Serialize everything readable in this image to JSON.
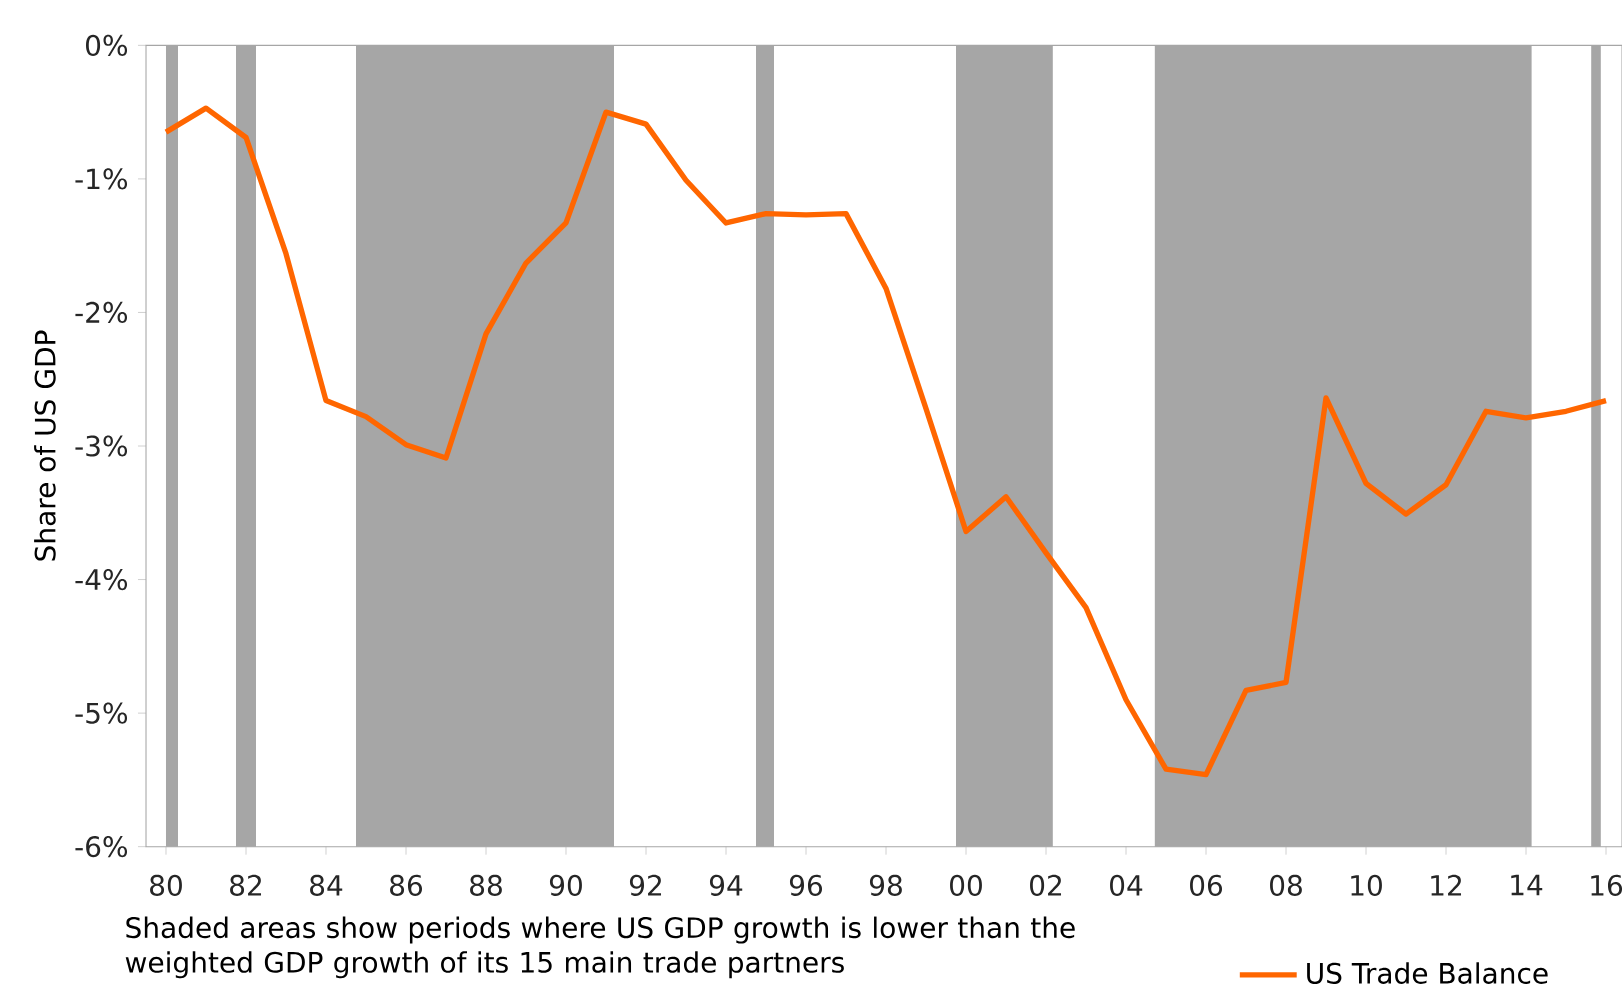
{
  "chart_data": {
    "type": "line",
    "ylabel": "Share of US GDP",
    "x": [
      1980,
      1981,
      1982,
      1983,
      1984,
      1985,
      1986,
      1987,
      1988,
      1989,
      1990,
      1991,
      1992,
      1993,
      1994,
      1995,
      1996,
      1997,
      1998,
      1999,
      2000,
      2001,
      2002,
      2003,
      2004,
      2005,
      2006,
      2007,
      2008,
      2009,
      2010,
      2011,
      2012,
      2013,
      2014,
      2015,
      2016
    ],
    "series": [
      {
        "name": "US Trade Balance",
        "color": "#ff6600",
        "values": [
          -0.65,
          -0.47,
          -0.69,
          -1.56,
          -2.66,
          -2.78,
          -2.99,
          -3.09,
          -2.16,
          -1.63,
          -1.33,
          -0.5,
          -0.59,
          -1.01,
          -1.33,
          -1.26,
          -1.27,
          -1.26,
          -1.82,
          -2.72,
          -3.64,
          -3.38,
          -3.8,
          -4.21,
          -4.9,
          -5.42,
          -5.46,
          -4.83,
          -4.77,
          -2.64,
          -3.28,
          -3.51,
          -3.29,
          -2.74,
          -2.79,
          -2.74,
          -2.66
        ]
      }
    ],
    "bands": [
      {
        "axis": "x",
        "from": 1980.0,
        "to": 1980.3,
        "color": "#a6a6a6"
      },
      {
        "axis": "x",
        "from": 1981.75,
        "to": 1982.25,
        "color": "#a6a6a6"
      },
      {
        "axis": "x",
        "from": 1984.75,
        "to": 1991.2,
        "color": "#a6a6a6"
      },
      {
        "axis": "x",
        "from": 1994.75,
        "to": 1995.2,
        "color": "#a6a6a6"
      },
      {
        "axis": "x",
        "from": 1999.75,
        "to": 2002.17,
        "color": "#a6a6a6"
      },
      {
        "axis": "x",
        "from": 2004.72,
        "to": 2014.14,
        "color": "#a6a6a6"
      },
      {
        "axis": "x",
        "from": 2015.63,
        "to": 2015.87,
        "color": "#a6a6a6"
      }
    ],
    "annotations": [
      "Shaded areas show periods where US GDP growth is lower than the weighted GDP growth of its 15 main trade partners"
    ],
    "xlim": [
      1979.5,
      2016.4
    ],
    "ylim": [
      -6,
      0
    ],
    "xticks": [
      {
        "value": 1980,
        "label": "80"
      },
      {
        "value": 1982,
        "label": "82"
      },
      {
        "value": 1984,
        "label": "84"
      },
      {
        "value": 1986,
        "label": "86"
      },
      {
        "value": 1988,
        "label": "88"
      },
      {
        "value": 1990,
        "label": "90"
      },
      {
        "value": 1992,
        "label": "92"
      },
      {
        "value": 1994,
        "label": "94"
      },
      {
        "value": 1996,
        "label": "96"
      },
      {
        "value": 1998,
        "label": "98"
      },
      {
        "value": 2000,
        "label": "00"
      },
      {
        "value": 2002,
        "label": "02"
      },
      {
        "value": 2004,
        "label": "04"
      },
      {
        "value": 2006,
        "label": "06"
      },
      {
        "value": 2008,
        "label": "08"
      },
      {
        "value": 2010,
        "label": "10"
      },
      {
        "value": 2012,
        "label": "12"
      },
      {
        "value": 2014,
        "label": "14"
      },
      {
        "value": 2016,
        "label": "16"
      }
    ],
    "yticks": [
      {
        "value": -6,
        "label": "-6%"
      },
      {
        "value": -5,
        "label": "-5%"
      },
      {
        "value": -4,
        "label": "-4%"
      },
      {
        "value": -3,
        "label": "-3%"
      },
      {
        "value": -2,
        "label": "-2%"
      },
      {
        "value": -1,
        "label": "-1%"
      },
      {
        "value": 0,
        "label": "0%"
      }
    ],
    "legend": "bottom right",
    "grid": false,
    "marker": "none",
    "line_style": "solid"
  }
}
